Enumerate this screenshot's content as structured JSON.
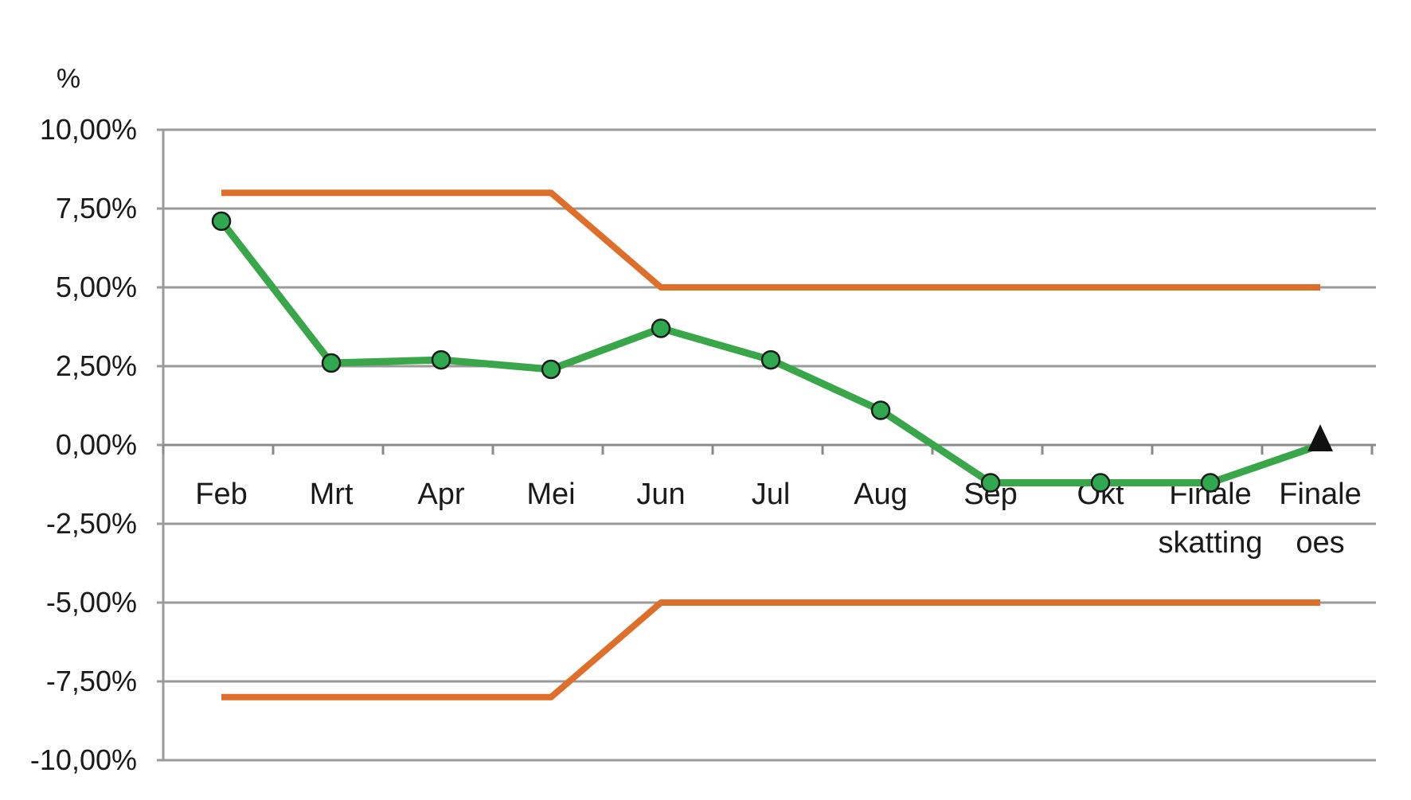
{
  "chart_data": {
    "type": "line",
    "title": "",
    "xlabel": "",
    "ylabel": "%",
    "ylim": [
      -10,
      10
    ],
    "y_ticks": [
      10,
      7.5,
      5,
      2.5,
      0,
      -2.5,
      -5,
      -7.5,
      -10
    ],
    "y_tick_labels": [
      "10,00%",
      "7,50%",
      "5,00%",
      "2,50%",
      "0,00%",
      "-2,50%",
      "-5,00%",
      "-7,50%",
      "-10,00%"
    ],
    "grid": true,
    "legend": "none",
    "categories": [
      [
        "Feb"
      ],
      [
        "Mrt"
      ],
      [
        "Apr"
      ],
      [
        "Mei"
      ],
      [
        "Jun"
      ],
      [
        "Jul"
      ],
      [
        "Aug"
      ],
      [
        "Sep"
      ],
      [
        "Okt"
      ],
      [
        "Finale",
        "skatting"
      ],
      [
        "Finale",
        "oes"
      ]
    ],
    "series": [
      {
        "color": "#dd6f2a",
        "values": [
          8,
          8,
          8,
          8,
          5,
          5,
          5,
          5,
          5,
          5,
          5
        ],
        "markers": "none"
      },
      {
        "color": "#dd6f2a",
        "values": [
          -8,
          -8,
          -8,
          -8,
          -5,
          -5,
          -5,
          -5,
          -5,
          -5,
          -5
        ],
        "markers": "none"
      },
      {
        "color": "#3aa64a",
        "marker_fill": "#2fa84f",
        "values": [
          7.1,
          2.6,
          2.7,
          2.4,
          3.7,
          2.7,
          1.1,
          -1.2,
          -1.2,
          -1.2,
          0
        ],
        "markers": "circle",
        "last_marker": "triangle"
      }
    ],
    "axis_color": "#9a9a9a",
    "grid_color": "#9a9a9a"
  }
}
